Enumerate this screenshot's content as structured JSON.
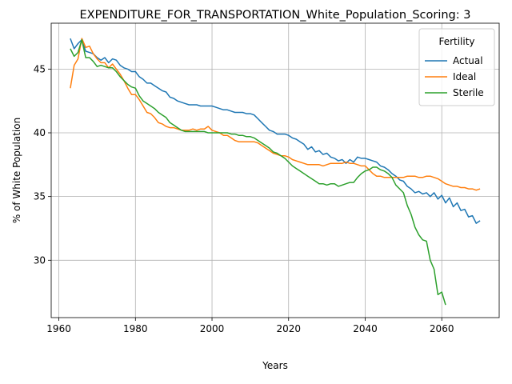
{
  "chart_data": {
    "type": "line",
    "title": "EXPENDITURE_FOR_TRANSPORTATION_White_Population_Scoring: 3",
    "xlabel": "Years",
    "ylabel": "% of White Population",
    "xlim": [
      1958,
      2075
    ],
    "ylim": [
      25.5,
      48.6
    ],
    "xticks": [
      1960,
      1980,
      2000,
      2020,
      2040,
      2060
    ],
    "yticks": [
      30,
      35,
      40,
      45
    ],
    "grid": true,
    "legend": {
      "title": "Fertility",
      "placement": "top-right"
    },
    "series": [
      {
        "name": "Actual",
        "color": "#1f77b4",
        "x": [
          1963,
          1964,
          1965,
          1966,
          1967,
          1968,
          1969,
          1970,
          1971,
          1972,
          1973,
          1974,
          1975,
          1976,
          1977,
          1978,
          1979,
          1980,
          1981,
          1982,
          1983,
          1984,
          1985,
          1986,
          1987,
          1988,
          1989,
          1990,
          1991,
          1992,
          1993,
          1994,
          1995,
          1996,
          1997,
          1998,
          1999,
          2000,
          2001,
          2002,
          2003,
          2004,
          2005,
          2006,
          2007,
          2008,
          2009,
          2010,
          2011,
          2012,
          2013,
          2014,
          2015,
          2016,
          2017,
          2018,
          2019,
          2020,
          2021,
          2022,
          2023,
          2024,
          2025,
          2026,
          2027,
          2028,
          2029,
          2030,
          2031,
          2032,
          2033,
          2034,
          2035,
          2036,
          2037,
          2038,
          2039,
          2040,
          2041,
          2042,
          2043,
          2044,
          2045,
          2046,
          2047,
          2048,
          2049,
          2050,
          2051,
          2052,
          2053,
          2054,
          2055,
          2056,
          2057,
          2058,
          2059,
          2060,
          2061,
          2062,
          2063,
          2064,
          2065,
          2066,
          2067,
          2068,
          2069,
          2070
        ],
        "values": [
          47.4,
          46.6,
          47.0,
          47.3,
          46.4,
          46.3,
          46.2,
          45.9,
          45.7,
          45.9,
          45.5,
          45.8,
          45.7,
          45.3,
          45.1,
          45.0,
          44.8,
          44.8,
          44.4,
          44.2,
          43.9,
          43.9,
          43.7,
          43.5,
          43.3,
          43.2,
          42.8,
          42.7,
          42.5,
          42.4,
          42.3,
          42.2,
          42.2,
          42.2,
          42.1,
          42.1,
          42.1,
          42.1,
          42.0,
          41.9,
          41.8,
          41.8,
          41.7,
          41.6,
          41.6,
          41.6,
          41.5,
          41.5,
          41.4,
          41.1,
          40.8,
          40.5,
          40.2,
          40.1,
          39.9,
          39.9,
          39.9,
          39.8,
          39.6,
          39.5,
          39.3,
          39.1,
          38.7,
          38.9,
          38.5,
          38.6,
          38.3,
          38.4,
          38.1,
          38.0,
          37.8,
          37.9,
          37.6,
          37.9,
          37.7,
          38.1,
          38.0,
          38.0,
          37.9,
          37.8,
          37.7,
          37.4,
          37.3,
          37.1,
          36.8,
          36.6,
          36.3,
          36.2,
          35.8,
          35.6,
          35.3,
          35.4,
          35.2,
          35.3,
          35.0,
          35.3,
          34.8,
          35.1,
          34.5,
          34.9,
          34.2,
          34.5,
          33.9,
          34.0,
          33.4,
          33.5,
          32.9,
          33.1
        ]
      },
      {
        "name": "Ideal",
        "color": "#ff7f0e",
        "x": [
          1963,
          1964,
          1965,
          1966,
          1967,
          1968,
          1969,
          1970,
          1971,
          1972,
          1973,
          1974,
          1975,
          1976,
          1977,
          1978,
          1979,
          1980,
          1981,
          1982,
          1983,
          1984,
          1985,
          1986,
          1987,
          1988,
          1989,
          1990,
          1991,
          1992,
          1993,
          1994,
          1995,
          1996,
          1997,
          1998,
          1999,
          2000,
          2001,
          2002,
          2003,
          2004,
          2005,
          2006,
          2007,
          2008,
          2009,
          2010,
          2011,
          2012,
          2013,
          2014,
          2015,
          2016,
          2017,
          2018,
          2019,
          2020,
          2021,
          2022,
          2023,
          2024,
          2025,
          2026,
          2027,
          2028,
          2029,
          2030,
          2031,
          2032,
          2033,
          2034,
          2035,
          2036,
          2037,
          2038,
          2039,
          2040,
          2041,
          2042,
          2043,
          2044,
          2045,
          2046,
          2047,
          2048,
          2049,
          2050,
          2051,
          2052,
          2053,
          2054,
          2055,
          2056,
          2057,
          2058,
          2059,
          2060,
          2061,
          2062,
          2063,
          2064,
          2065,
          2066,
          2067,
          2068,
          2069,
          2070
        ],
        "values": [
          43.5,
          45.3,
          45.8,
          47.4,
          46.7,
          46.8,
          46.2,
          45.8,
          45.5,
          45.5,
          45.1,
          45.4,
          45.0,
          44.6,
          44.1,
          43.5,
          43.0,
          43.0,
          42.6,
          42.1,
          41.6,
          41.5,
          41.2,
          40.8,
          40.7,
          40.5,
          40.4,
          40.4,
          40.3,
          40.2,
          40.2,
          40.2,
          40.3,
          40.2,
          40.3,
          40.3,
          40.5,
          40.2,
          40.1,
          40.0,
          39.8,
          39.8,
          39.6,
          39.4,
          39.3,
          39.3,
          39.3,
          39.3,
          39.3,
          39.2,
          39.0,
          38.8,
          38.6,
          38.4,
          38.3,
          38.2,
          38.2,
          38.1,
          37.9,
          37.8,
          37.7,
          37.6,
          37.5,
          37.5,
          37.5,
          37.5,
          37.4,
          37.5,
          37.6,
          37.6,
          37.6,
          37.6,
          37.7,
          37.6,
          37.6,
          37.5,
          37.4,
          37.4,
          37.1,
          36.8,
          36.6,
          36.6,
          36.5,
          36.5,
          36.5,
          36.5,
          36.5,
          36.5,
          36.6,
          36.6,
          36.6,
          36.5,
          36.5,
          36.6,
          36.6,
          36.5,
          36.4,
          36.2,
          36.0,
          35.9,
          35.8,
          35.8,
          35.7,
          35.7,
          35.6,
          35.6,
          35.5,
          35.6
        ]
      },
      {
        "name": "Sterile",
        "color": "#2ca02c",
        "x": [
          1963,
          1964,
          1965,
          1966,
          1967,
          1968,
          1969,
          1970,
          1971,
          1972,
          1973,
          1974,
          1975,
          1976,
          1977,
          1978,
          1979,
          1980,
          1981,
          1982,
          1983,
          1984,
          1985,
          1986,
          1987,
          1988,
          1989,
          1990,
          1991,
          1992,
          1993,
          1994,
          1995,
          1996,
          1997,
          1998,
          1999,
          2000,
          2001,
          2002,
          2003,
          2004,
          2005,
          2006,
          2007,
          2008,
          2009,
          2010,
          2011,
          2012,
          2013,
          2014,
          2015,
          2016,
          2017,
          2018,
          2019,
          2020,
          2021,
          2022,
          2023,
          2024,
          2025,
          2026,
          2027,
          2028,
          2029,
          2030,
          2031,
          2032,
          2033,
          2034,
          2035,
          2036,
          2037,
          2038,
          2039,
          2040,
          2041,
          2042,
          2043,
          2044,
          2045,
          2046,
          2047,
          2048,
          2049,
          2050,
          2051,
          2052,
          2053,
          2054,
          2055,
          2056,
          2057,
          2058,
          2059,
          2060,
          2061
        ],
        "values": [
          46.6,
          46.0,
          46.3,
          47.3,
          45.9,
          45.9,
          45.6,
          45.2,
          45.3,
          45.2,
          45.1,
          45.1,
          44.8,
          44.4,
          44.1,
          43.8,
          43.6,
          43.5,
          42.9,
          42.5,
          42.3,
          42.1,
          41.9,
          41.6,
          41.4,
          41.2,
          40.8,
          40.6,
          40.4,
          40.2,
          40.1,
          40.1,
          40.1,
          40.1,
          40.1,
          40.1,
          40.0,
          40.0,
          40.0,
          40.0,
          40.0,
          40.0,
          39.9,
          39.9,
          39.8,
          39.8,
          39.7,
          39.7,
          39.6,
          39.4,
          39.2,
          39.0,
          38.8,
          38.5,
          38.4,
          38.2,
          38.0,
          37.7,
          37.4,
          37.2,
          37.0,
          36.8,
          36.6,
          36.4,
          36.2,
          36.0,
          36.0,
          35.9,
          36.0,
          36.0,
          35.8,
          35.9,
          36.0,
          36.1,
          36.1,
          36.5,
          36.8,
          37.0,
          37.1,
          37.3,
          37.3,
          37.1,
          37.0,
          36.8,
          36.5,
          35.9,
          35.6,
          35.3,
          34.3,
          33.6,
          32.6,
          32.0,
          31.6,
          31.5,
          30.0,
          29.3,
          27.3,
          27.5,
          26.5
        ]
      }
    ]
  }
}
